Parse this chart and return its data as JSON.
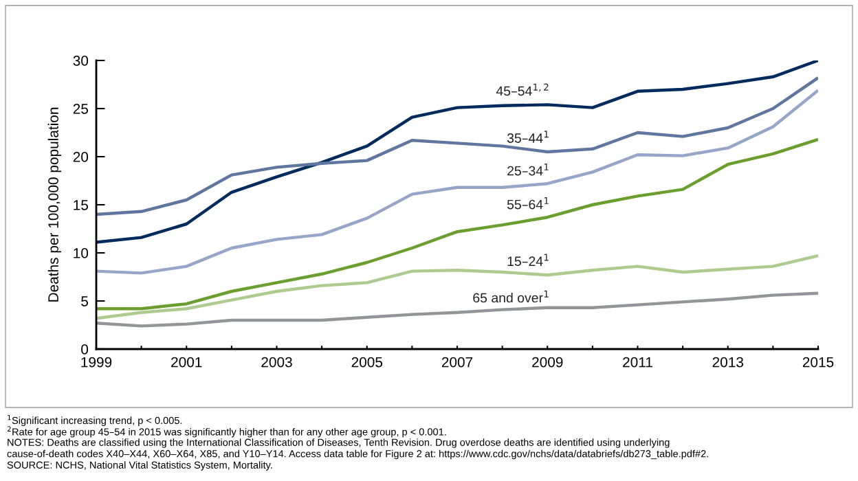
{
  "chart_data": {
    "type": "line",
    "ylabel": "Deaths per 100,000 population",
    "x": [
      1999,
      2000,
      2001,
      2002,
      2003,
      2004,
      2005,
      2006,
      2007,
      2008,
      2009,
      2010,
      2011,
      2012,
      2013,
      2014,
      2015
    ],
    "xlim": [
      1999,
      2015
    ],
    "xticks": [
      1999,
      {
        "value": 2000,
        "label": null
      },
      2001,
      {
        "value": 2002,
        "label": null
      },
      2003,
      {
        "value": 2004,
        "label": null
      },
      2005,
      {
        "value": 2006,
        "label": null
      },
      2007,
      {
        "value": 2008,
        "label": null
      },
      2009,
      {
        "value": 2010,
        "label": null
      },
      2011,
      {
        "value": 2012,
        "label": null
      },
      2013,
      {
        "value": 2014,
        "label": null
      },
      2015
    ],
    "ylim": [
      0,
      30
    ],
    "yticks": [
      0,
      5,
      10,
      15,
      20,
      25,
      30
    ],
    "grid": false,
    "legend": false,
    "marker": "none",
    "line_style": "solid",
    "series": [
      {
        "name": "45–54$^{1,2}$",
        "color": "#002b5c",
        "values": [
          11.1,
          11.6,
          13.0,
          16.3,
          17.9,
          19.4,
          21.1,
          24.1,
          25.1,
          25.3,
          25.4,
          25.1,
          26.8,
          27.0,
          27.6,
          28.3,
          30.0
        ]
      },
      {
        "name": "35–44$^{1}$",
        "color": "#5f769f",
        "values": [
          14.0,
          14.3,
          15.5,
          18.1,
          18.9,
          19.3,
          19.6,
          21.7,
          21.4,
          21.1,
          20.5,
          20.8,
          22.5,
          22.1,
          23.0,
          25.0,
          28.2
        ]
      },
      {
        "name": "25–34$^{1}$",
        "color": "#96a6c8",
        "values": [
          8.1,
          7.9,
          8.6,
          10.5,
          11.4,
          11.9,
          13.6,
          16.1,
          16.8,
          16.8,
          17.2,
          18.4,
          20.2,
          20.1,
          20.9,
          23.1,
          26.9
        ]
      },
      {
        "name": "55–64$^{1}$",
        "color": "#6a9f2f",
        "values": [
          4.2,
          4.2,
          4.7,
          6.0,
          6.9,
          7.8,
          9.0,
          10.5,
          12.2,
          12.9,
          13.7,
          15.0,
          15.9,
          16.6,
          19.2,
          20.3,
          21.8
        ]
      },
      {
        "name": "15–24$^{1}$",
        "color": "#aecb8f",
        "values": [
          3.2,
          3.8,
          4.2,
          5.1,
          6.0,
          6.6,
          6.9,
          8.1,
          8.2,
          8.0,
          7.7,
          8.2,
          8.6,
          8.0,
          8.3,
          8.6,
          9.7
        ]
      },
      {
        "name": "65 and over$^{1}$",
        "color": "#939598",
        "values": [
          2.7,
          2.4,
          2.6,
          3.0,
          3.0,
          3.0,
          3.3,
          3.6,
          3.8,
          4.1,
          4.3,
          4.3,
          4.6,
          4.9,
          5.2,
          5.6,
          5.8
        ]
      }
    ],
    "annotations": [
      "$^{1}$Significant increasing trend, p < 0.005.",
      "$^{2}$Rate for age group 45–54 in 2015 was significantly higher than for any other age group, p < 0.001.",
      "NOTES: Deaths are classified using the International Classification of Diseases, Tenth Revision. Drug overdose deaths are identified using underlying",
      "cause-of-death codes X40–X44, X60–X64, X85, and Y10–Y14. Access data table for Figure 2 at: https://www.cdc.gov/nchs/data/databriefs/db273_table.pdf#2.",
      "SOURCE: NCHS, National Vital Statistics System, Mortality."
    ]
  }
}
